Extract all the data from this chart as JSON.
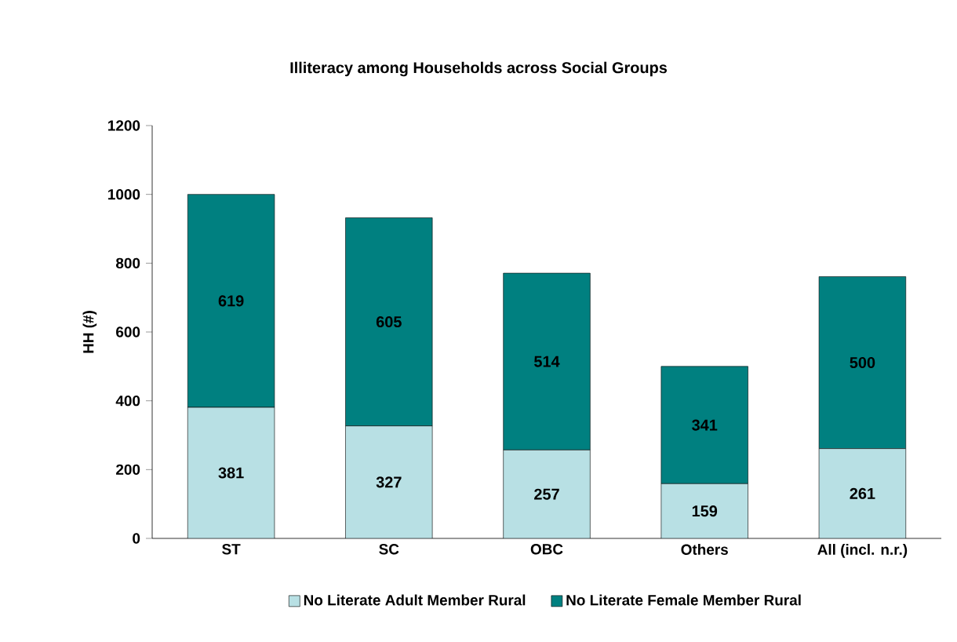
{
  "chart_data": {
    "type": "bar",
    "title": "Illiteracy among Households across Social Groups",
    "ylabel": "HH (#)",
    "categories": [
      "ST",
      "SC",
      "OBC",
      "Others",
      "All (incl. n.r.)"
    ],
    "stacked": true,
    "data_labels": true,
    "legend": "bottom",
    "grid": false,
    "ylim": [
      0,
      1200
    ],
    "yticks": [
      0,
      200,
      400,
      600,
      800,
      1000,
      1200
    ],
    "series": [
      {
        "name": "No Literate Adult Member Rural",
        "color": "#b8e0e4",
        "values": [
          381,
          327,
          257,
          159,
          261
        ]
      },
      {
        "name": "No Literate Female Member Rural",
        "color": "#008080",
        "values": [
          619,
          605,
          514,
          341,
          500
        ]
      }
    ]
  }
}
